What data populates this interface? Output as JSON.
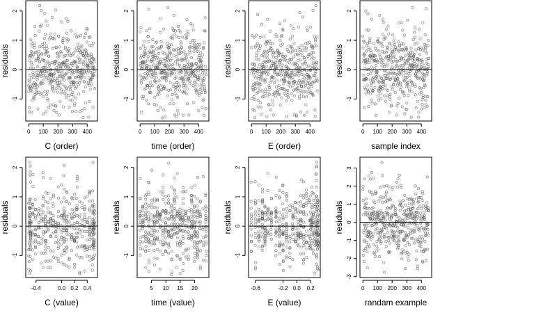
{
  "figure": {
    "background": "#ffffff",
    "point_color": "#555555",
    "axis_color": "#000000"
  },
  "chart_data": [
    {
      "type": "scatter",
      "xlabel": "C (order)",
      "ylabel": "residuals",
      "xlim": [
        -20,
        470
      ],
      "ylim": [
        -1.75,
        2.35
      ],
      "xticks": [
        {
          "v": 0,
          "t": "0"
        },
        {
          "v": 100,
          "t": "100"
        },
        {
          "v": 200,
          "t": "200"
        },
        {
          "v": 300,
          "t": "300"
        },
        {
          "v": 400,
          "t": "400"
        }
      ],
      "yticks": [
        {
          "v": -1,
          "t": "-1"
        },
        {
          "v": 0,
          "t": "0"
        },
        {
          "v": 1,
          "t": "1"
        },
        {
          "v": 2,
          "t": "2"
        }
      ],
      "hline": 0,
      "series": [
        {
          "x_kind": "index",
          "n": 450,
          "x_range": [
            0,
            450
          ],
          "y_mean": 0,
          "y_sd": 0.65,
          "y_clip": [
            -1.65,
            2.2
          ],
          "seed": 11,
          "points": [
            [
              75,
              2.18
            ],
            [
              85,
              2.02
            ],
            [
              110,
              1.92
            ],
            [
              160,
              1.78
            ],
            [
              260,
              1.74
            ],
            [
              120,
              1.65
            ],
            [
              20,
              -1.45
            ],
            [
              5,
              -1.3
            ],
            [
              210,
              -1.55
            ],
            [
              350,
              -1.42
            ],
            [
              440,
              -1.28
            ]
          ]
        }
      ]
    },
    {
      "type": "scatter",
      "xlabel": "time (order)",
      "ylabel": "residuals",
      "xlim": [
        -20,
        470
      ],
      "ylim": [
        -1.75,
        2.35
      ],
      "xticks": [
        {
          "v": 0,
          "t": "0"
        },
        {
          "v": 100,
          "t": "100"
        },
        {
          "v": 200,
          "t": "200"
        },
        {
          "v": 300,
          "t": "300"
        },
        {
          "v": 400,
          "t": "400"
        }
      ],
      "yticks": [
        {
          "v": -1,
          "t": "-1"
        },
        {
          "v": 0,
          "t": "0"
        },
        {
          "v": 1,
          "t": "1"
        },
        {
          "v": 2,
          "t": "2"
        }
      ],
      "hline": 0,
      "series": [
        {
          "x_kind": "index",
          "n": 450,
          "x_range": [
            0,
            450
          ],
          "y_mean": 0,
          "y_sd": 0.65,
          "y_clip": [
            -1.65,
            2.2
          ],
          "seed": 23,
          "points": [
            [
              60,
              2.05
            ],
            [
              140,
              1.75
            ],
            [
              190,
              2.12
            ],
            [
              230,
              1.85
            ],
            [
              320,
              1.7
            ],
            [
              10,
              -1.45
            ],
            [
              170,
              -1.6
            ],
            [
              260,
              -1.5
            ],
            [
              400,
              -1.4
            ]
          ]
        }
      ]
    },
    {
      "type": "scatter",
      "xlabel": "E (order)",
      "ylabel": "residuals",
      "xlim": [
        -20,
        470
      ],
      "ylim": [
        -1.75,
        2.35
      ],
      "xticks": [
        {
          "v": 0,
          "t": "0"
        },
        {
          "v": 100,
          "t": "100"
        },
        {
          "v": 200,
          "t": "200"
        },
        {
          "v": 300,
          "t": "300"
        },
        {
          "v": 400,
          "t": "400"
        }
      ],
      "yticks": [
        {
          "v": -1,
          "t": "-1"
        },
        {
          "v": 0,
          "t": "0"
        },
        {
          "v": 1,
          "t": "1"
        },
        {
          "v": 2,
          "t": "2"
        }
      ],
      "hline": 0,
      "series": [
        {
          "x_kind": "index",
          "n": 450,
          "x_range": [
            0,
            450
          ],
          "y_mean": 0,
          "y_sd": 0.65,
          "y_clip": [
            -1.65,
            2.2
          ],
          "seed": 37,
          "points": [
            [
              440,
              2.18
            ],
            [
              420,
              2.02
            ],
            [
              330,
              1.95
            ],
            [
              110,
              1.72
            ],
            [
              70,
              1.55
            ],
            [
              20,
              -1.4
            ],
            [
              150,
              -1.55
            ],
            [
              240,
              -1.6
            ],
            [
              380,
              -1.45
            ]
          ]
        }
      ]
    },
    {
      "type": "scatter",
      "xlabel": "sample index",
      "ylabel": "residuals",
      "xlim": [
        -20,
        470
      ],
      "ylim": [
        -1.75,
        2.35
      ],
      "xticks": [
        {
          "v": 0,
          "t": "0"
        },
        {
          "v": 100,
          "t": "100"
        },
        {
          "v": 200,
          "t": "200"
        },
        {
          "v": 300,
          "t": "300"
        },
        {
          "v": 400,
          "t": "400"
        }
      ],
      "yticks": [
        {
          "v": -1,
          "t": "-1"
        },
        {
          "v": 0,
          "t": "0"
        },
        {
          "v": 1,
          "t": "1"
        },
        {
          "v": 2,
          "t": "2"
        }
      ],
      "hline": 0,
      "series": [
        {
          "x_kind": "index",
          "n": 450,
          "x_range": [
            0,
            450
          ],
          "y_mean": 0,
          "y_sd": 0.65,
          "y_clip": [
            -1.65,
            2.2
          ],
          "seed": 51,
          "points": [
            [
              20,
              2.0
            ],
            [
              60,
              1.72
            ],
            [
              140,
              1.62
            ],
            [
              340,
              2.12
            ],
            [
              410,
              1.6
            ],
            [
              8,
              -1.3
            ],
            [
              180,
              -1.45
            ],
            [
              300,
              -1.35
            ],
            [
              420,
              -1.3
            ]
          ]
        }
      ]
    },
    {
      "type": "scatter",
      "xlabel": "C (value)",
      "ylabel": "residuals",
      "xlim": [
        -0.56,
        0.56
      ],
      "ylim": [
        -1.75,
        2.35
      ],
      "xticks": [
        {
          "v": -0.4,
          "t": "-0.4"
        },
        {
          "v": 0.0,
          "t": "0.0"
        },
        {
          "v": 0.2,
          "t": "0.2"
        },
        {
          "v": 0.4,
          "t": "0.4"
        }
      ],
      "yticks": [
        {
          "v": -1,
          "t": "-1"
        },
        {
          "v": 0,
          "t": "0"
        },
        {
          "v": 1,
          "t": "1"
        },
        {
          "v": 2,
          "t": "2"
        }
      ],
      "hline": 0,
      "series": [
        {
          "x_kind": "columns",
          "n": 450,
          "seed": 67,
          "y_mean": 0,
          "y_sd": 0.65,
          "y_clip": [
            -1.65,
            2.2
          ],
          "jitter": 0.004,
          "columns": [
            -0.51,
            -0.5,
            -0.49,
            -0.48,
            -0.45,
            -0.41,
            -0.36,
            -0.32,
            -0.29,
            -0.25,
            -0.21,
            -0.17,
            -0.13,
            -0.09,
            -0.05,
            0.0,
            0.04,
            0.08,
            0.12,
            0.16,
            0.2,
            0.24,
            0.28,
            0.32,
            0.36,
            0.4,
            0.44,
            0.48,
            0.49,
            0.5,
            0.51
          ],
          "points": [
            [
              -0.5,
              2.18
            ],
            [
              -0.49,
              2.05
            ],
            [
              0.03,
              1.72
            ],
            [
              -0.5,
              -1.6
            ],
            [
              0.48,
              -1.5
            ]
          ]
        }
      ]
    },
    {
      "type": "scatter",
      "xlabel": "time (value)",
      "ylabel": "residuals",
      "xlim": [
        0,
        25
      ],
      "ylim": [
        -1.75,
        2.35
      ],
      "xticks": [
        {
          "v": 5,
          "t": "5"
        },
        {
          "v": 10,
          "t": "10"
        },
        {
          "v": 15,
          "t": "15"
        },
        {
          "v": 20,
          "t": "20"
        }
      ],
      "yticks": [
        {
          "v": -1,
          "t": "-1"
        },
        {
          "v": 0,
          "t": "0"
        },
        {
          "v": 1,
          "t": "1"
        },
        {
          "v": 2,
          "t": "2"
        }
      ],
      "hline": 0,
      "series": [
        {
          "x_kind": "columns",
          "n": 450,
          "seed": 79,
          "y_mean": 0,
          "y_sd": 0.65,
          "y_clip": [
            -1.65,
            2.2
          ],
          "jitter": 0.12,
          "columns": [
            1,
            2,
            3,
            4,
            5,
            6,
            7,
            8,
            9,
            10,
            11,
            12,
            13,
            14,
            15,
            16,
            17,
            18,
            19,
            20,
            21,
            22,
            23,
            24
          ],
          "points": [
            [
              11,
              2.15
            ],
            [
              9,
              1.75
            ],
            [
              14,
              1.8
            ],
            [
              3,
              -1.4
            ],
            [
              12,
              -1.65
            ],
            [
              22,
              -1.45
            ]
          ]
        }
      ]
    },
    {
      "type": "scatter",
      "xlabel": "E (value)",
      "ylabel": "residuals",
      "xlim": [
        -0.7,
        0.34
      ],
      "ylim": [
        -1.75,
        2.35
      ],
      "xticks": [
        {
          "v": -0.6,
          "t": "-0.6"
        },
        {
          "v": -0.2,
          "t": "-0.2"
        },
        {
          "v": 0.0,
          "t": "0.0"
        },
        {
          "v": 0.2,
          "t": "0.2"
        }
      ],
      "yticks": [
        {
          "v": -1,
          "t": "-1"
        },
        {
          "v": 0,
          "t": "0"
        },
        {
          "v": 1,
          "t": "1"
        },
        {
          "v": 2,
          "t": "2"
        }
      ],
      "hline": 0,
      "series": [
        {
          "x_kind": "columns",
          "n": 450,
          "seed": 97,
          "y_mean": 0,
          "y_sd": 0.65,
          "y_clip": [
            -1.65,
            2.2
          ],
          "jitter": 0.004,
          "columns": [
            -0.66,
            -0.6,
            -0.55,
            -0.5,
            -0.46,
            -0.42,
            -0.37,
            -0.3,
            -0.25,
            -0.2,
            -0.15,
            -0.1,
            -0.06,
            -0.02,
            0.02,
            0.06,
            0.1,
            0.14,
            0.18,
            0.2,
            0.22,
            0.24,
            0.26,
            0.28,
            0.29,
            0.3,
            0.31
          ],
          "points": [
            [
              0.29,
              2.18
            ],
            [
              0.28,
              2.02
            ],
            [
              -0.42,
              1.8
            ],
            [
              0.3,
              -1.45
            ],
            [
              -0.6,
              -1.4
            ]
          ]
        }
      ]
    },
    {
      "type": "scatter",
      "xlabel": "randam example",
      "ylabel": "residuals",
      "xlim": [
        -20,
        470
      ],
      "ylim": [
        -3.05,
        3.6
      ],
      "xticks": [
        {
          "v": 0,
          "t": "0"
        },
        {
          "v": 100,
          "t": "100"
        },
        {
          "v": 200,
          "t": "200"
        },
        {
          "v": 300,
          "t": "300"
        },
        {
          "v": 400,
          "t": "400"
        }
      ],
      "yticks": [
        {
          "v": -3,
          "t": "-3"
        },
        {
          "v": -2,
          "t": "-2"
        },
        {
          "v": -1,
          "t": "-1"
        },
        {
          "v": 0,
          "t": "0"
        },
        {
          "v": 1,
          "t": "1"
        },
        {
          "v": 2,
          "t": "2"
        },
        {
          "v": 3,
          "t": "3"
        }
      ],
      "hline": 0,
      "series": [
        {
          "x_kind": "index",
          "n": 450,
          "x_range": [
            0,
            450
          ],
          "y_mean": 0,
          "y_sd": 1.0,
          "y_clip": [
            -2.9,
            3.4
          ],
          "seed": 131,
          "points": [
            [
              130,
              3.3
            ],
            [
              60,
              2.75
            ],
            [
              250,
              2.6
            ],
            [
              30,
              -2.5
            ],
            [
              290,
              -2.55
            ],
            [
              410,
              -2.2
            ]
          ]
        }
      ]
    }
  ]
}
